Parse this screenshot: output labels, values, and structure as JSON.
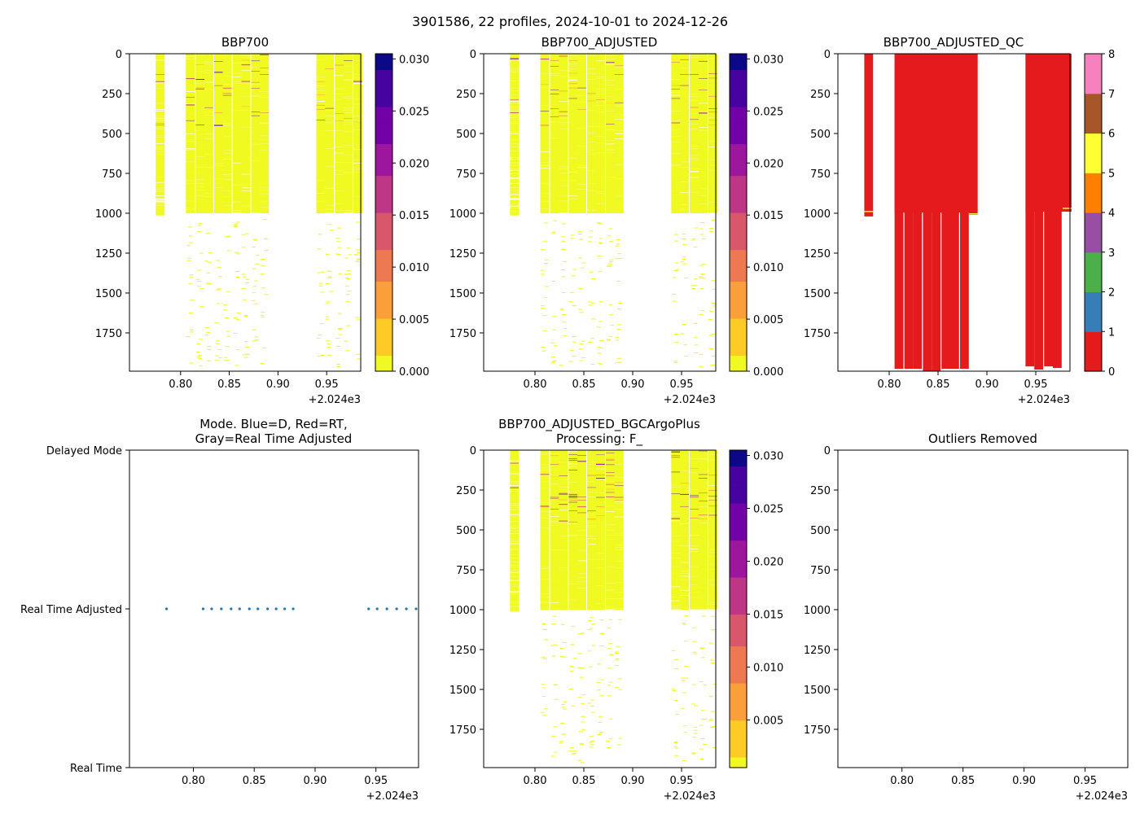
{
  "suptitle": "3901586, 22 profiles, 2024-10-01 to 2024-12-26",
  "x_axis": {
    "ticks": [
      0.8,
      0.85,
      0.9,
      0.95
    ],
    "tick_labels": [
      "0.80",
      "0.85",
      "0.90",
      "0.95"
    ],
    "offset_label": "+2.024e3",
    "xlim": [
      0.7475,
      0.985
    ]
  },
  "depth_axis": {
    "ticks": [
      0,
      250,
      500,
      750,
      1000,
      1250,
      1500,
      1750
    ],
    "tick_labels": [
      "0",
      "250",
      "500",
      "750",
      "1000",
      "1250",
      "1500",
      "1750"
    ],
    "ylim": [
      0,
      1990
    ]
  },
  "profiles": {
    "times": [
      0.779,
      0.81,
      0.82,
      0.829,
      0.839,
      0.848,
      0.858,
      0.867,
      0.877,
      0.886,
      0.944,
      0.953,
      0.963,
      0.972,
      0.982
    ],
    "band_halfwidth": 0.0045,
    "dense_max_depth": [
      1010,
      995,
      995,
      995,
      995,
      995,
      995,
      995,
      995,
      995,
      995,
      995,
      995,
      995,
      995
    ],
    "qc_max_depth": [
      1020,
      1975,
      1975,
      1975,
      1990,
      1990,
      1975,
      1975,
      1975,
      1010,
      1960,
      1980,
      1960,
      1970,
      990
    ]
  },
  "colorbars": {
    "bbp_ticks": [
      "0.000",
      "0.005",
      "0.010",
      "0.015",
      "0.020",
      "0.025",
      "0.030"
    ],
    "bbp_tick_values": [
      0.0,
      0.005,
      0.01,
      0.015,
      0.02,
      0.025,
      0.03
    ],
    "bbp_range": [
      0.0,
      0.0305
    ],
    "bgc_ticks": [
      "0.005",
      "0.010",
      "0.015",
      "0.020",
      "0.025",
      "0.030"
    ],
    "bgc_tick_values": [
      0.005,
      0.01,
      0.015,
      0.02,
      0.025,
      0.03
    ],
    "bgc_range": [
      0.0005,
      0.0305
    ],
    "qc_ticks": [
      "0",
      "1",
      "2",
      "3",
      "4",
      "5",
      "6",
      "7",
      "8"
    ],
    "qc_colors": [
      "#e41a1c",
      "#377eb8",
      "#4daf4a",
      "#984ea3",
      "#ff7f00",
      "#ffff33",
      "#a65628",
      "#f781bf",
      "#999999"
    ]
  },
  "colors": {
    "plasma_r": [
      "#f0f921",
      "#fdca26",
      "#fb9f3a",
      "#ed7953",
      "#d8576b",
      "#bd3786",
      "#9c179e",
      "#7201a8",
      "#46039f",
      "#0d0887"
    ],
    "data_yellow": "#f0f921",
    "qc_red": "#e41a1c",
    "mode_dot": "#1f77b4"
  },
  "panels": [
    {
      "id": "bbp700",
      "title": "BBP700",
      "kind": "bbp",
      "cbar": "bbp"
    },
    {
      "id": "bbp700-adjusted",
      "title": "BBP700_ADJUSTED",
      "kind": "bbp",
      "cbar": "bbp"
    },
    {
      "id": "bbp700-adjusted-qc",
      "title": "BBP700_ADJUSTED_QC",
      "kind": "qc",
      "cbar": "qc"
    },
    {
      "id": "mode",
      "title_lines": [
        "Mode. Blue=D, Red=RT,",
        "Gray=Real Time Adjusted"
      ],
      "kind": "mode"
    },
    {
      "id": "bgcargoplus",
      "title_lines": [
        "BBP700_ADJUSTED_BGCArgoPlus",
        "Processing: F_"
      ],
      "kind": "bbp",
      "cbar": "bgc"
    },
    {
      "id": "outliers",
      "title": "Outliers Removed",
      "kind": "empty"
    }
  ],
  "chart_data": {
    "type": "heatmap",
    "mode_panel": {
      "type": "scatter",
      "y_categories": [
        "Delayed Mode",
        "Real Time Adjusted",
        "Real Time"
      ],
      "points_x": [
        0.778,
        0.808,
        0.815,
        0.823,
        0.831,
        0.838,
        0.846,
        0.853,
        0.861,
        0.868,
        0.875,
        0.882,
        0.944,
        0.951,
        0.959,
        0.967,
        0.975,
        0.983
      ],
      "points_category": "Real Time Adjusted"
    }
  }
}
